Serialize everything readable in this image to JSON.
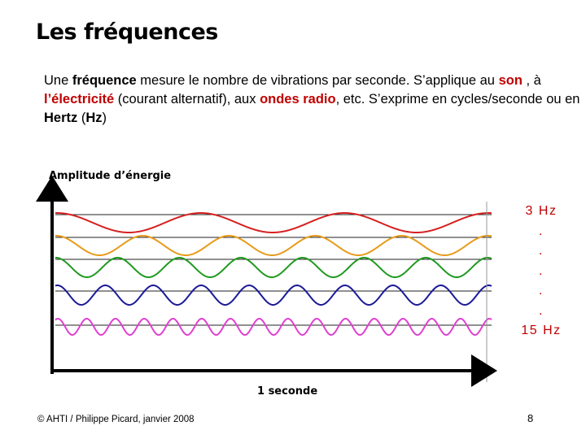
{
  "title": "Les fréquences",
  "intro": {
    "t1": "Une ",
    "k1": "fréquence",
    "t2": " mesure le nombre de vibrations par seconde. S’applique au ",
    "k2": "son",
    "t3": " , à ",
    "k3": "l’électricité",
    "t4": " (courant alternatif), aux ",
    "k4": "ondes radio",
    "t5": ", etc. S’exprime en cycles/seconde ou en ",
    "k5": "Hertz",
    "t6": " (",
    "k6": "Hz",
    "t7": ")"
  },
  "figure": {
    "y_axis_label": "Amplitude d’énergie",
    "x_axis_label": "1 seconde",
    "waves": [
      {
        "frequency_hz": 3,
        "color": "#d62020"
      },
      {
        "frequency_hz": 5,
        "color": "#e89a1a"
      },
      {
        "frequency_hz": 7,
        "color": "#1f9a1f"
      },
      {
        "frequency_hz": 9,
        "color": "#1a1a9a"
      },
      {
        "frequency_hz": 15,
        "color": "#e040d0"
      }
    ],
    "freq_labels": [
      "3 Hz",
      ".",
      ".",
      ".",
      ".",
      ".",
      "15 Hz"
    ],
    "freq_label_color": "#c00000"
  },
  "footer": "© AHTI / Philippe Picard, janvier 2008",
  "page_number": "8"
}
